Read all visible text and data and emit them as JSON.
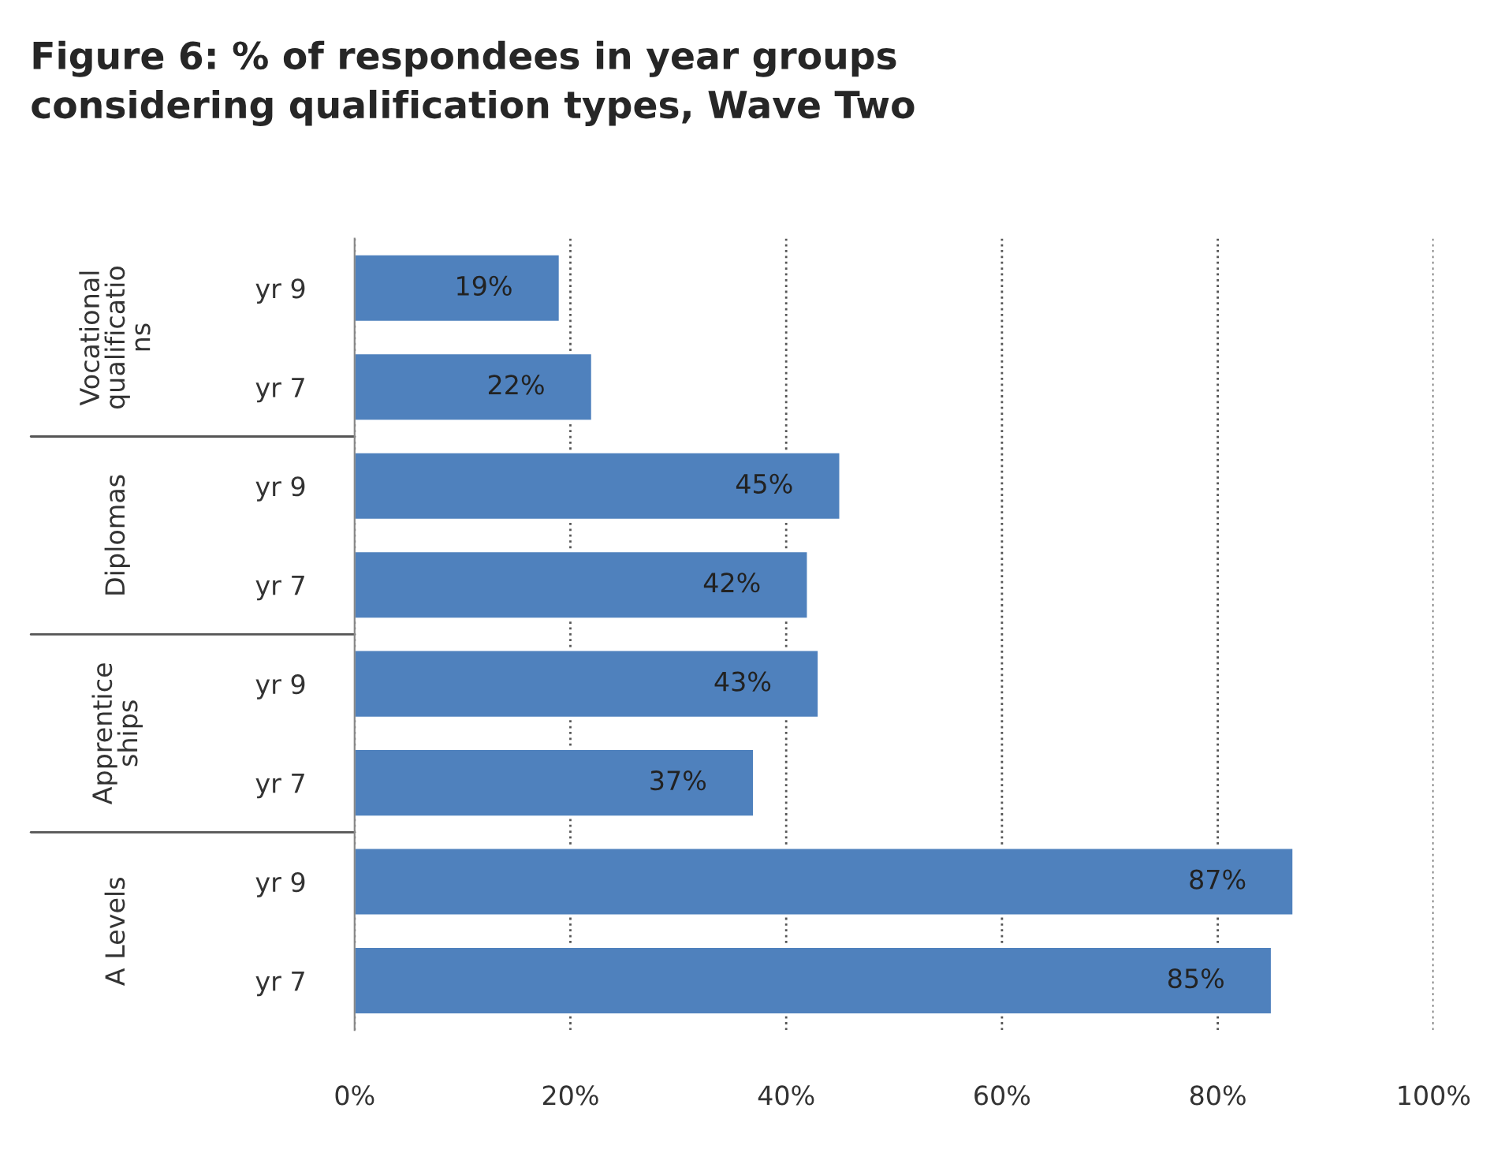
{
  "chart_data": {
    "type": "bar",
    "orientation": "horizontal",
    "title": "Figure 6: % of respondees in year groups\nconsidering qualification types, Wave Two",
    "categories": [
      "yr 9",
      "yr 7",
      "yr 9",
      "yr 7",
      "yr 9",
      "yr 7",
      "yr 9",
      "yr 7"
    ],
    "values": [
      19,
      22,
      45,
      42,
      43,
      37,
      87,
      85
    ],
    "value_labels": [
      "19%",
      "22%",
      "45%",
      "42%",
      "43%",
      "37%",
      "87%",
      "85%"
    ],
    "color": "#4f81bd",
    "annotations": [
      "Vocational\nqualificatio\nns",
      "Diplomas",
      "Apprentice\nships",
      "A Levels"
    ],
    "xlim": [
      0,
      100
    ],
    "xticks": [
      {
        "value": 0,
        "label": "0%"
      },
      {
        "value": 20,
        "label": "20%"
      },
      {
        "value": 40,
        "label": "40%"
      },
      {
        "value": 60,
        "label": "60%"
      },
      {
        "value": 80,
        "label": "80%"
      },
      {
        "value": 100,
        "label": "100%"
      }
    ],
    "grid": "x"
  }
}
